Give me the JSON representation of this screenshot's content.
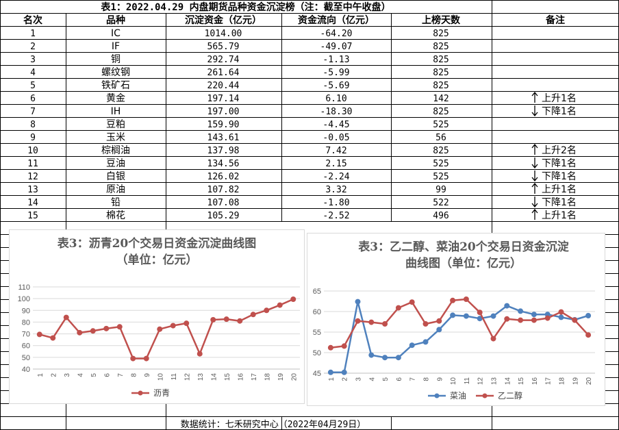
{
  "title": "表1：2022.04.29 内盘期货品种资金沉淀榜（注：截至中午收盘）",
  "columns": [
    "名次",
    "品种",
    "沉淀资金（亿元）",
    "资金流向（亿元）",
    "上榜天数",
    "备注"
  ],
  "rows": [
    {
      "rank": "1",
      "name": "IC",
      "funds": "1014.00",
      "flow": "-64.20",
      "days": "825",
      "note": "",
      "arrow": ""
    },
    {
      "rank": "2",
      "name": "IF",
      "funds": "565.79",
      "flow": "-49.07",
      "days": "825",
      "note": "",
      "arrow": ""
    },
    {
      "rank": "3",
      "name": "铜",
      "funds": "292.74",
      "flow": "-1.13",
      "days": "825",
      "note": "",
      "arrow": ""
    },
    {
      "rank": "4",
      "name": "螺纹钢",
      "funds": "261.64",
      "flow": "-5.99",
      "days": "825",
      "note": "",
      "arrow": ""
    },
    {
      "rank": "5",
      "name": "铁矿石",
      "funds": "220.44",
      "flow": "-5.69",
      "days": "825",
      "note": "",
      "arrow": ""
    },
    {
      "rank": "6",
      "name": "黄金",
      "funds": "197.14",
      "flow": "6.10",
      "days": "142",
      "note": "上升1名",
      "arrow": "up"
    },
    {
      "rank": "7",
      "name": "IH",
      "funds": "197.00",
      "flow": "-18.30",
      "days": "825",
      "note": "下降1名",
      "arrow": "down"
    },
    {
      "rank": "8",
      "name": "豆粕",
      "funds": "159.90",
      "flow": "-4.45",
      "days": "525",
      "note": "",
      "arrow": ""
    },
    {
      "rank": "9",
      "name": "玉米",
      "funds": "143.61",
      "flow": "-0.05",
      "days": "56",
      "note": "",
      "arrow": ""
    },
    {
      "rank": "10",
      "name": "棕榈油",
      "funds": "137.98",
      "flow": "7.42",
      "days": "825",
      "note": "上升2名",
      "arrow": "up"
    },
    {
      "rank": "11",
      "name": "豆油",
      "funds": "134.56",
      "flow": "2.15",
      "days": "525",
      "note": "下降1名",
      "arrow": "down"
    },
    {
      "rank": "12",
      "name": "白银",
      "funds": "126.02",
      "flow": "-2.24",
      "days": "525",
      "note": "下降1名",
      "arrow": "down"
    },
    {
      "rank": "13",
      "name": "原油",
      "funds": "107.82",
      "flow": "3.32",
      "days": "99",
      "note": "上升1名",
      "arrow": "up"
    },
    {
      "rank": "14",
      "name": "铅",
      "funds": "107.08",
      "flow": "-1.80",
      "days": "522",
      "note": "下降1名",
      "arrow": "down"
    },
    {
      "rank": "15",
      "name": "棉花",
      "funds": "105.29",
      "flow": "-2.52",
      "days": "496",
      "note": "上升1名",
      "arrow": "up"
    }
  ],
  "footer": "数据统计：七禾研究中心（2022年04月29日）",
  "colors": {
    "asphalt": "#C0504D",
    "glycol": "#C0504D",
    "rapeseed": "#4F81BD",
    "grid": "#D9D9D9",
    "border": "#000000"
  },
  "chart_data": [
    {
      "type": "line",
      "title": "表3：沥青20个交易日资金沉淀曲线图\n（单位：亿元）",
      "x": [
        1,
        2,
        3,
        4,
        5,
        6,
        7,
        8,
        9,
        10,
        11,
        12,
        13,
        14,
        15,
        16,
        17,
        18,
        19,
        20
      ],
      "series": [
        {
          "name": "沥青",
          "color": "#C0504D",
          "values": [
            69.5,
            66.5,
            84,
            71,
            72.5,
            74.5,
            76,
            49,
            49,
            74,
            77,
            79,
            53,
            82,
            82.5,
            81,
            86.5,
            90,
            94.5,
            99.5
          ]
        }
      ],
      "ylim": [
        40,
        110
      ],
      "yticks": [
        40,
        50,
        60,
        70,
        80,
        90,
        100,
        110
      ],
      "grid": true,
      "legend": "bottom"
    },
    {
      "type": "line",
      "title": "表3：乙二醇、菜油20个交易日资金沉淀\n曲线图（单位：亿元）",
      "x": [
        1,
        2,
        3,
        4,
        5,
        6,
        7,
        8,
        9,
        10,
        11,
        12,
        13,
        14,
        15,
        16,
        17,
        18,
        19,
        20
      ],
      "series": [
        {
          "name": "菜油",
          "color": "#4F81BD",
          "values": [
            45.2,
            45.2,
            62.4,
            49.4,
            48.8,
            48.8,
            51.8,
            52.6,
            55.6,
            59.1,
            58.9,
            58.3,
            58.9,
            61.4,
            60.1,
            59.3,
            59.3,
            58.6,
            58.0,
            59.0
          ]
        },
        {
          "name": "乙二醇",
          "color": "#C0504D",
          "values": [
            51.2,
            51.6,
            57.7,
            57.4,
            57.0,
            60.9,
            62.3,
            57.0,
            57.7,
            62.7,
            63.0,
            59.8,
            53.4,
            58.2,
            57.9,
            57.9,
            58.4,
            59.9,
            57.9,
            54.3
          ]
        }
      ],
      "ylim": [
        45,
        65
      ],
      "yticks": [
        45,
        50,
        55,
        60,
        65
      ],
      "grid": true,
      "legend": "bottom"
    }
  ]
}
